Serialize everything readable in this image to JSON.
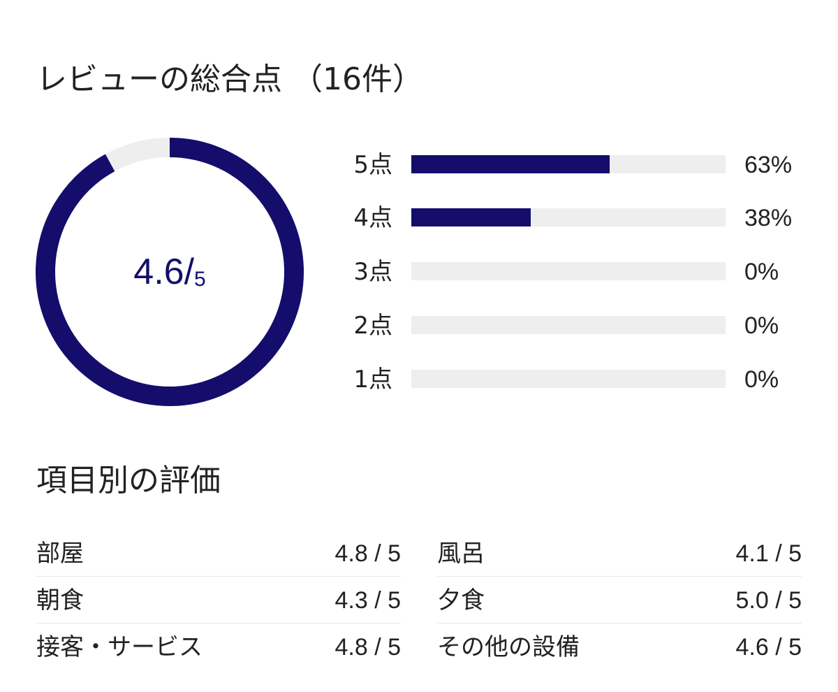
{
  "overall": {
    "title": "レビューの総合点 （16件）",
    "score": "4.6",
    "slash": "/",
    "max": "5",
    "score_fraction": 0.92
  },
  "distribution": [
    {
      "label": "5点",
      "percent_text": "63%",
      "percent": 63
    },
    {
      "label": "4点",
      "percent_text": "38%",
      "percent": 38
    },
    {
      "label": "3点",
      "percent_text": "0%",
      "percent": 0
    },
    {
      "label": "2点",
      "percent_text": "0%",
      "percent": 0
    },
    {
      "label": "1点",
      "percent_text": "0%",
      "percent": 0
    }
  ],
  "categories": {
    "title": "項目別の評価",
    "left": [
      {
        "name": "部屋",
        "score": "4.8 / 5"
      },
      {
        "name": "朝食",
        "score": "4.3 / 5"
      },
      {
        "name": "接客・サービス",
        "score": "4.8 / 5"
      }
    ],
    "right": [
      {
        "name": "風呂",
        "score": "4.1 / 5"
      },
      {
        "name": "夕食",
        "score": "5.0 / 5"
      },
      {
        "name": "その他の設備",
        "score": "4.6 / 5"
      }
    ]
  },
  "colors": {
    "accent": "#140d6b",
    "track": "#eeeeee",
    "text": "#222222"
  }
}
